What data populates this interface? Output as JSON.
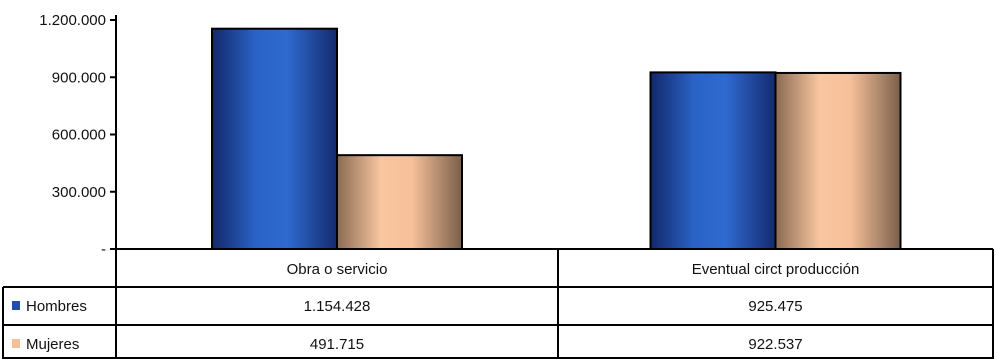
{
  "chart_data": {
    "type": "bar",
    "categories": [
      "Obra o servicio",
      "Eventual circt producción"
    ],
    "series": [
      {
        "name": "Hombres",
        "values": [
          1154428,
          925475
        ],
        "value_labels": [
          "1.154.428",
          "925.475"
        ],
        "color": "#1f4fa8"
      },
      {
        "name": "Mujeres",
        "values": [
          491715,
          922537
        ],
        "value_labels": [
          "491.715",
          "922.537"
        ],
        "color": "#f5bf98"
      }
    ],
    "y_ticks": [
      0,
      300000,
      600000,
      900000,
      1200000
    ],
    "y_tick_labels": [
      "-",
      "300.000",
      "600.000",
      "900.000",
      "1.200.000"
    ],
    "ylim": [
      0,
      1200000
    ],
    "title": "",
    "xlabel": "",
    "ylabel": "",
    "legend": "data-table",
    "grid": false
  }
}
